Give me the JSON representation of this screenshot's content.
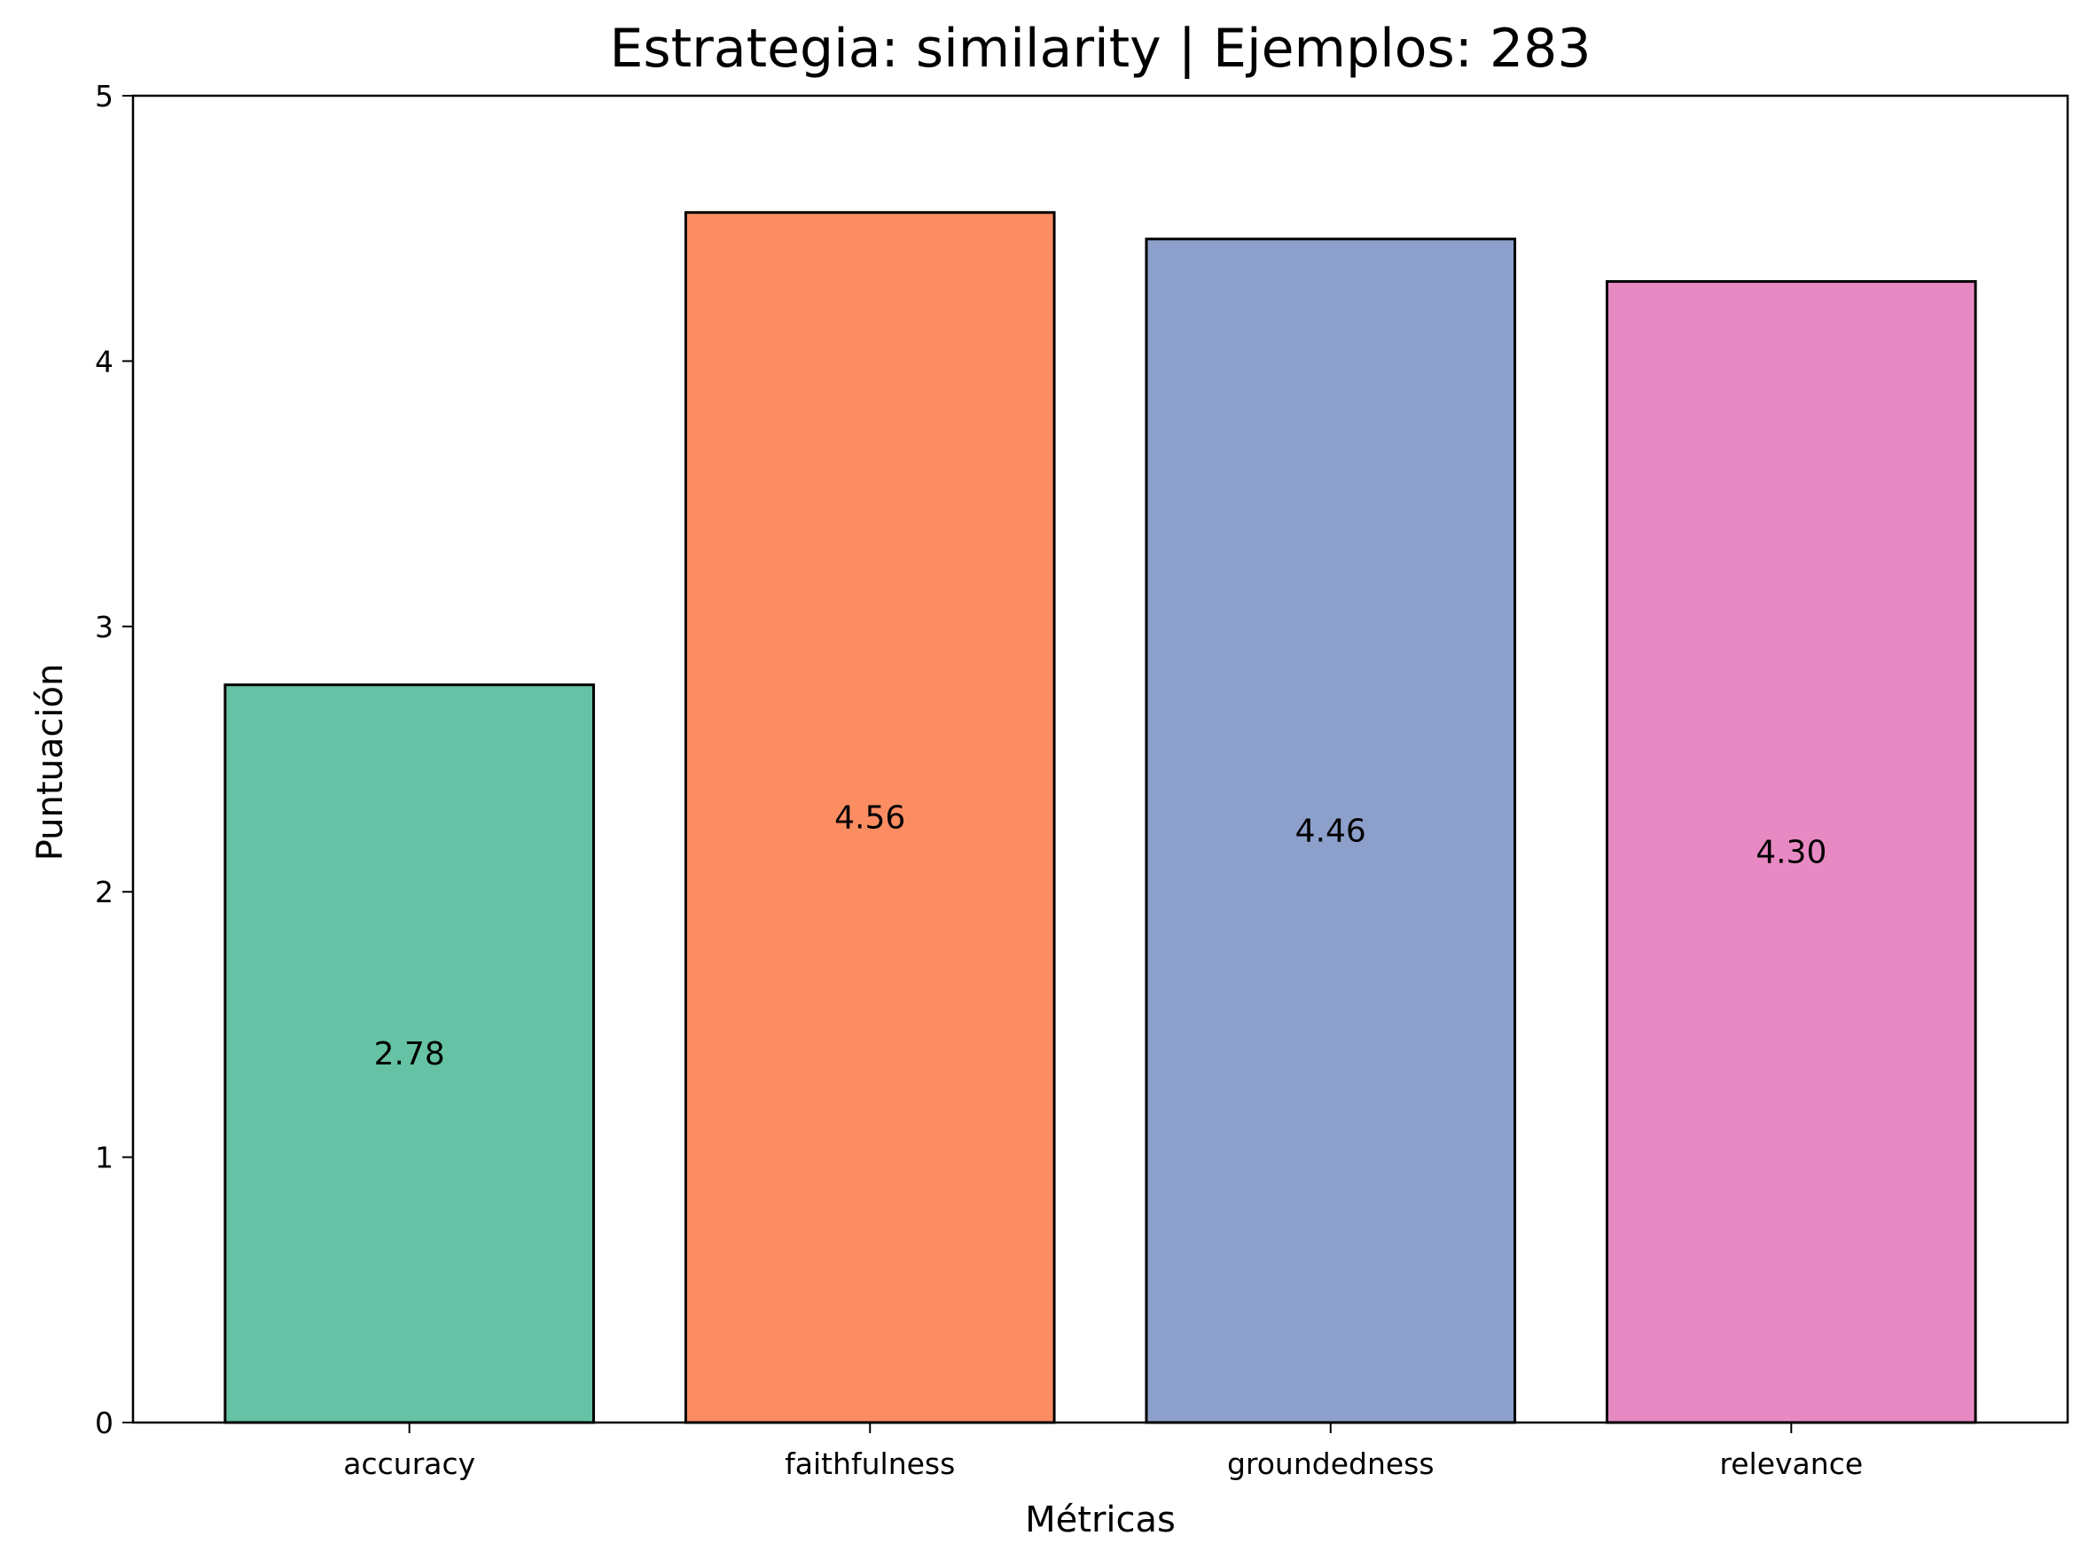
{
  "chart_data": {
    "type": "bar",
    "title": "Estrategia: similarity | Ejemplos: 283",
    "xlabel": "Métricas",
    "ylabel": "Puntuación",
    "categories": [
      "accuracy",
      "faithfulness",
      "groundedness",
      "relevance"
    ],
    "values": [
      2.78,
      4.56,
      4.46,
      4.3
    ],
    "value_labels": [
      "2.78",
      "4.56",
      "4.46",
      "4.30"
    ],
    "colors": [
      "#66c2a5",
      "#fc8d62",
      "#8da0cb",
      "#e78ac3"
    ],
    "ylim": [
      0,
      5
    ],
    "yticks": [
      0,
      1,
      2,
      3,
      4,
      5
    ],
    "grid": false,
    "legend": "none"
  }
}
